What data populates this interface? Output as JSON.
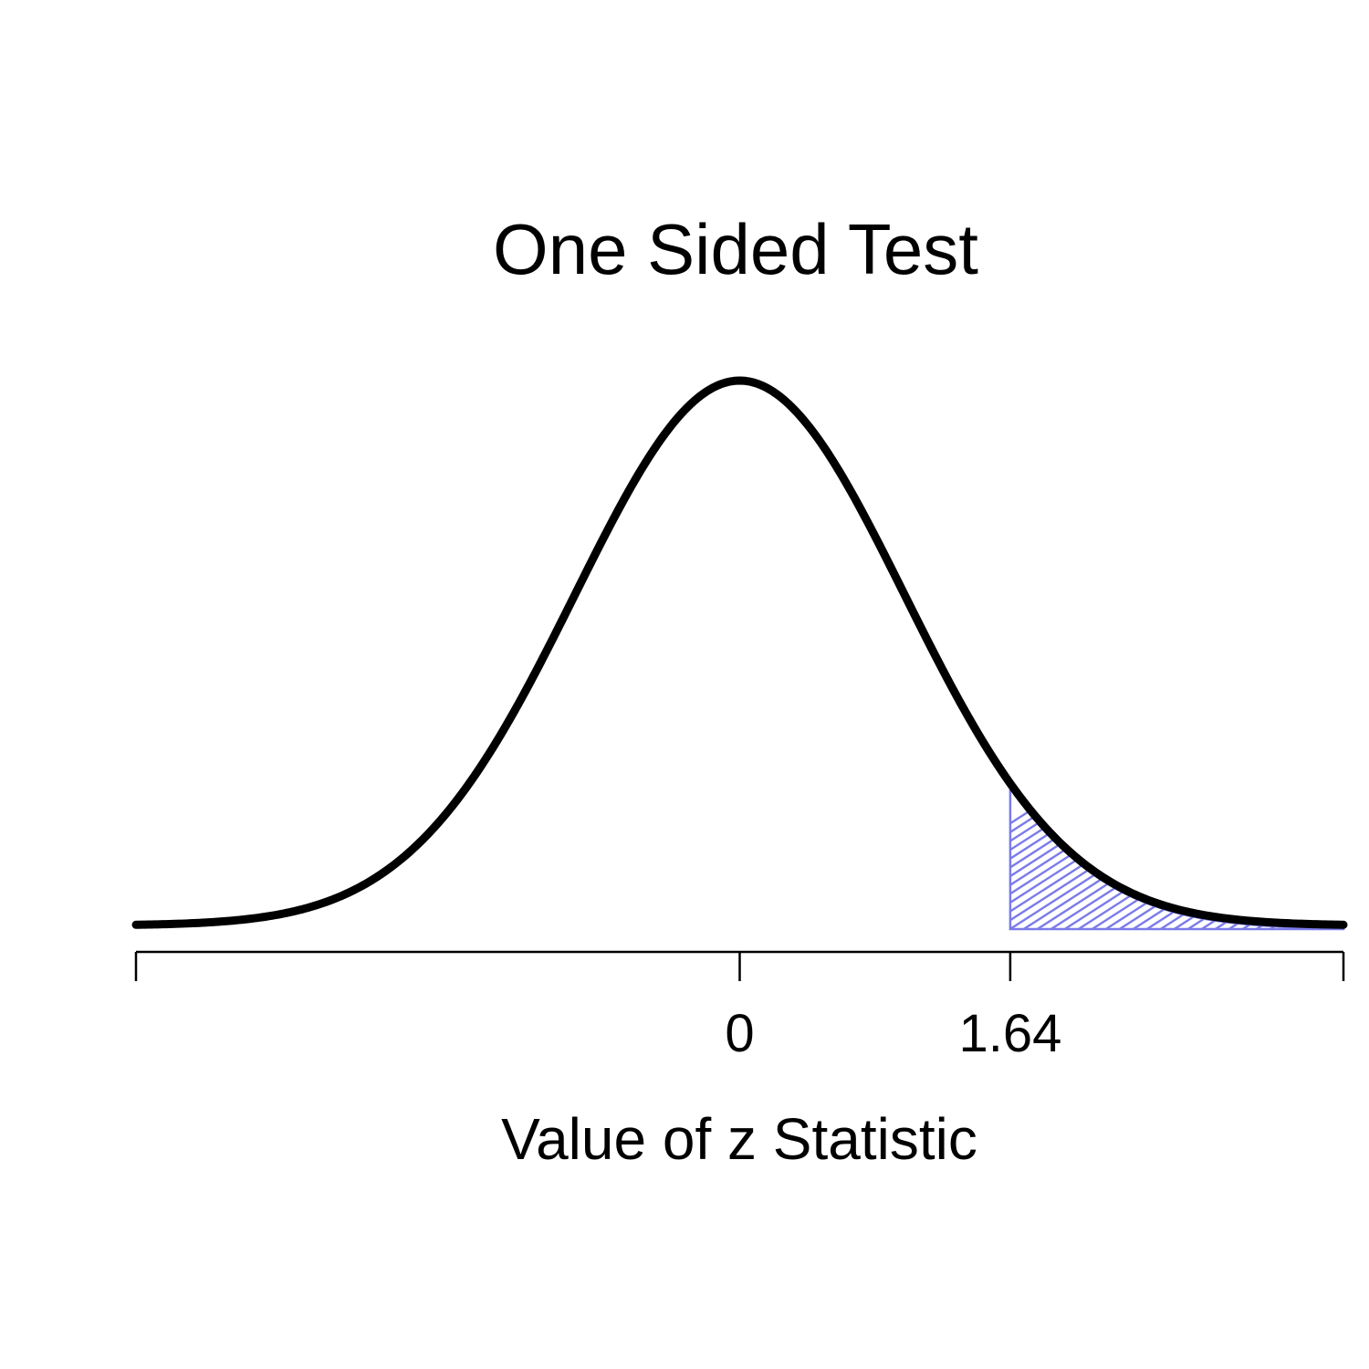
{
  "chart_data": {
    "type": "area",
    "title": "One Sided Test",
    "xlabel": "Value of z Statistic",
    "ylabel": "",
    "distribution": "standard normal",
    "xlim": [
      -3.66,
      3.66
    ],
    "ticks": [
      {
        "value": -3.66,
        "label": ""
      },
      {
        "value": 0,
        "label": "0"
      },
      {
        "value": 1.64,
        "label": "1.64"
      },
      {
        "value": 3.66,
        "label": ""
      }
    ],
    "shaded_region": {
      "from": 1.64,
      "to": 3.66,
      "fill": "hatched",
      "color": "#7b7bea"
    },
    "grid": false,
    "legend": "none"
  },
  "colors": {
    "curve": "#000000",
    "hatch": "#7b7bea"
  }
}
